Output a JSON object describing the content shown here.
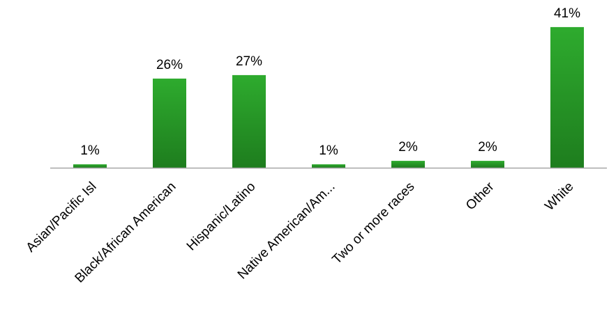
{
  "chart_data": {
    "type": "bar",
    "title": "",
    "xlabel": "",
    "ylabel": "",
    "categories": [
      "Asian/Pacific Isl",
      "Black/African American",
      "Hispanic/Latino",
      "Native American/Am...",
      "Two or more races",
      "Other",
      "White"
    ],
    "values": [
      1,
      26,
      27,
      1,
      2,
      2,
      41
    ],
    "value_labels": [
      "1%",
      "26%",
      "27%",
      "1%",
      "2%",
      "2%",
      "41%"
    ],
    "unit": "%",
    "ylim": [
      0,
      42
    ],
    "grid": false,
    "legend": "none",
    "colors": {
      "bar_top": "#2eab2e",
      "bar_bottom": "#1e7d1e",
      "axis": "#a6a6a6"
    }
  }
}
